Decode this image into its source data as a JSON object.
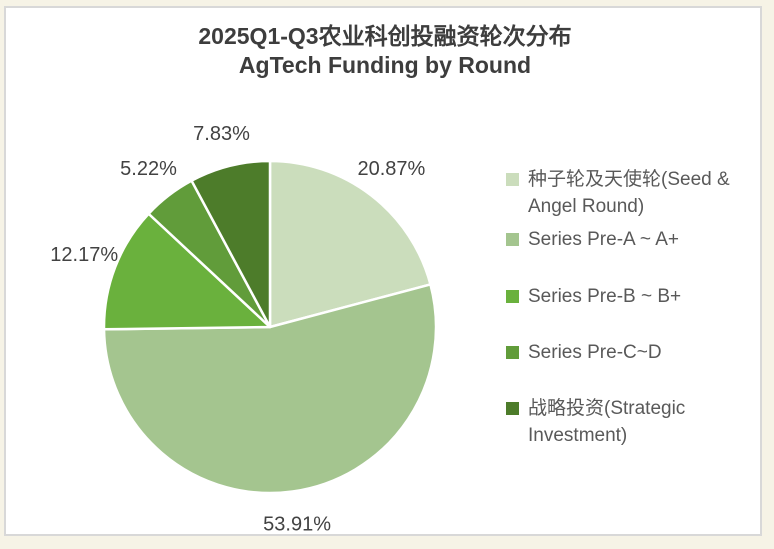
{
  "page": {
    "background_color": "#f6f3e6",
    "card_background": "#ffffff",
    "card_border_color": "#d8d8d8"
  },
  "title": {
    "line1": "2025Q1-Q3农业科创投融资轮次分布",
    "line2": "AgTech Funding by Round",
    "color": "#3d3d3d"
  },
  "chart_data": {
    "type": "pie",
    "title": "2025Q1-Q3农业科创投融资轮次分布 AgTech Funding by Round",
    "unit": "percent",
    "start_angle": "top",
    "direction": "clockwise",
    "legend_position": "right",
    "slice_border_color": "#ffffff",
    "label_color": "#424242",
    "legend_text_color": "#595959",
    "series": [
      {
        "name": "种子轮及天使轮(Seed & Angel Round)",
        "value": 20.87,
        "label": "20.87%",
        "color": "#cbddbc"
      },
      {
        "name": "Series Pre-A ~ A+",
        "value": 53.91,
        "label": "53.91%",
        "color": "#a4c58f"
      },
      {
        "name": "Series Pre-B ~ B+",
        "value": 12.17,
        "label": "12.17%",
        "color": "#6ab13d"
      },
      {
        "name": "Series Pre-C~D",
        "value": 5.22,
        "label": "5.22%",
        "color": "#619c3a"
      },
      {
        "name": "战略投资(Strategic Investment)",
        "value": 7.83,
        "label": "7.83%",
        "color": "#4d7c2a"
      }
    ]
  }
}
